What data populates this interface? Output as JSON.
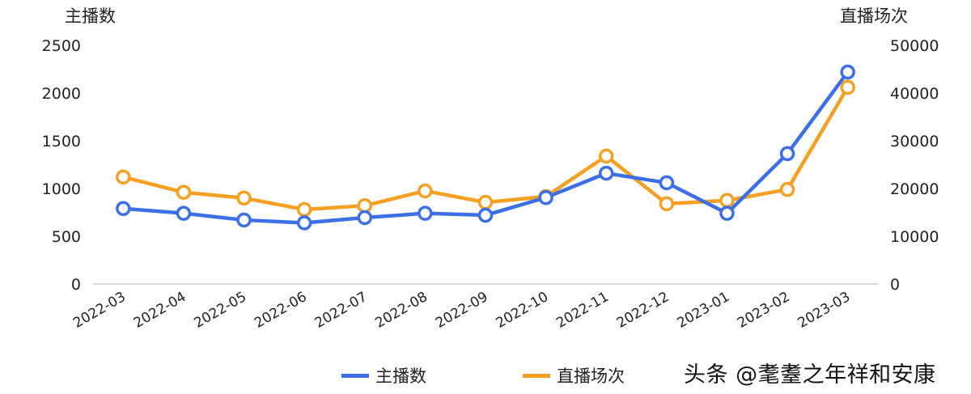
{
  "chart_data": {
    "type": "line",
    "title": "",
    "xlabel": "",
    "ylabel": "主播数",
    "y2label": "直播场次",
    "categories": [
      "2022-03",
      "2022-04",
      "2022-05",
      "2022-06",
      "2022-07",
      "2022-08",
      "2022-09",
      "2022-10",
      "2022-11",
      "2022-12",
      "2023-01",
      "2023-02",
      "2023-03"
    ],
    "series": [
      {
        "name": "主播数",
        "axis": "left",
        "color": "#3b6fe6",
        "values": [
          790,
          740,
          670,
          640,
          695,
          740,
          720,
          905,
          1160,
          1060,
          740,
          1365,
          2220
        ]
      },
      {
        "name": "直播场次",
        "axis": "right",
        "color": "#f5a023",
        "values": [
          22400,
          19200,
          18000,
          15600,
          16400,
          19500,
          17100,
          18300,
          26800,
          16800,
          17500,
          19800,
          41200
        ]
      }
    ],
    "ylim": [
      0,
      2500
    ],
    "y2lim": [
      0,
      50000
    ],
    "yticks": [
      0,
      500,
      1000,
      1500,
      2000,
      2500
    ],
    "y2ticks": [
      0,
      10000,
      20000,
      30000,
      40000,
      50000
    ],
    "grid": false,
    "legend_position": "bottom"
  },
  "labels": {
    "left_axis_title": "主播数",
    "right_axis_title": "直播场次",
    "legend": [
      "主播数",
      "直播场次"
    ],
    "watermark": "头条 @耄耋之年祥和安康"
  }
}
